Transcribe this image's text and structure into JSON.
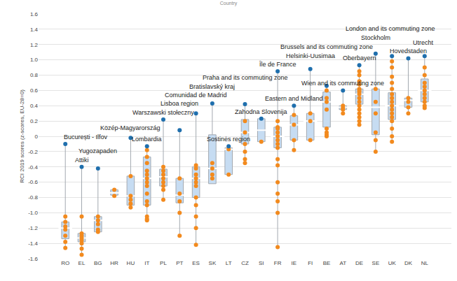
{
  "chart_data": {
    "type": "box",
    "title": "Country",
    "y_label": "RCI 2019 scores (z-scores, EU-28=0)",
    "categories": [
      "RO",
      "EL",
      "BG",
      "HR",
      "HU",
      "IT",
      "PL",
      "PT",
      "ES",
      "SK",
      "LT",
      "CZ",
      "SI",
      "FR",
      "IE",
      "FI",
      "BE",
      "AT",
      "DE",
      "SE",
      "UK",
      "DK",
      "NL"
    ],
    "boxes": {
      "lower": [
        -1.46,
        -1.55,
        -1.25,
        -0.78,
        -0.93,
        -1.1,
        -0.83,
        -1.3,
        -1.42,
        -0.62,
        -0.5,
        -0.35,
        -0.07,
        -1.45,
        -0.18,
        -0.05,
        0.0,
        0.3,
        0.15,
        -0.2,
        -0.07,
        0.3,
        0.37
      ],
      "q1": [
        -1.34,
        -1.38,
        -1.25,
        -0.77,
        -0.9,
        -0.9,
        -0.65,
        -0.87,
        -0.8,
        -0.62,
        -0.5,
        -0.1,
        -0.07,
        -0.15,
        -0.05,
        -0.05,
        0.12,
        0.35,
        0.42,
        0.02,
        0.22,
        0.38,
        0.45
      ],
      "median": [
        -1.2,
        -1.33,
        -1.1,
        -0.74,
        -0.78,
        -0.55,
        -0.53,
        -0.77,
        -0.55,
        -0.42,
        -0.17,
        0.05,
        0.08,
        0.0,
        0.15,
        0.2,
        0.45,
        0.38,
        0.55,
        0.38,
        0.4,
        0.47,
        0.6
      ],
      "q3": [
        -1.12,
        -1.27,
        -1.05,
        -0.7,
        -0.52,
        -0.27,
        -0.43,
        -0.55,
        -0.4,
        0.02,
        -0.15,
        0.22,
        0.23,
        0.12,
        0.27,
        0.3,
        0.58,
        0.4,
        0.62,
        0.62,
        0.57,
        0.5,
        0.75
      ],
      "upper": [
        -0.1,
        -0.4,
        -0.42,
        -0.7,
        -0.02,
        -0.13,
        0.22,
        0.08,
        0.3,
        0.43,
        -0.13,
        0.42,
        0.23,
        0.85,
        0.4,
        0.88,
        0.66,
        0.6,
        0.93,
        1.08,
        1.05,
        1.02,
        1.05
      ],
      "color": "#c6dcf2"
    },
    "regions": {
      "values": [
        [
          -1.05,
          -1.12,
          -1.18,
          -1.22,
          -1.3,
          -1.38,
          -1.46
        ],
        [
          -1.05,
          -1.27,
          -1.3,
          -1.33,
          -1.36,
          -1.4,
          -1.47,
          -1.55
        ],
        [
          -1.05,
          -1.1,
          -1.15,
          -1.22,
          -1.25
        ],
        [
          -0.7,
          -0.78
        ],
        [
          -0.52,
          -0.78,
          -0.83,
          -0.88,
          -0.93
        ],
        [
          -0.18,
          -0.27,
          -0.35,
          -0.45,
          -0.5,
          -0.55,
          -0.6,
          -0.65,
          -0.75,
          -0.85,
          -0.9,
          -1.05,
          -1.08,
          -1.1
        ],
        [
          -0.4,
          -0.45,
          -0.5,
          -0.55,
          -0.6,
          -0.65,
          -0.7,
          -0.83
        ],
        [
          -0.55,
          -0.75,
          -0.85,
          -1.0,
          -1.3
        ],
        [
          -0.38,
          -0.42,
          -0.5,
          -0.55,
          -0.6,
          -0.65,
          -0.8,
          -0.9,
          -1.05,
          -1.2,
          -1.42
        ],
        [
          -0.35,
          -0.42,
          -0.5,
          -0.55
        ],
        [
          -0.17,
          -0.5
        ],
        [
          0.2,
          0.05,
          -0.1,
          -0.2,
          -0.3,
          -0.35
        ],
        [
          -0.07
        ],
        [
          0.2,
          0.12,
          0.1,
          0.05,
          0.0,
          -0.05,
          -0.1,
          -0.15,
          -0.3,
          -0.38,
          -0.6,
          -0.75,
          -0.85,
          -1.0,
          -1.45
        ],
        [
          0.28,
          0.15,
          -0.05,
          -0.18
        ],
        [
          0.3,
          0.2,
          -0.05
        ],
        [
          0.6,
          0.5,
          0.45,
          0.35,
          0.1,
          0.05,
          0.02,
          0.0
        ],
        [
          0.4,
          0.37,
          0.35,
          0.3
        ],
        [
          0.85,
          0.8,
          0.72,
          0.68,
          0.62,
          0.6,
          0.58,
          0.55,
          0.5,
          0.45,
          0.4,
          0.35,
          0.3,
          0.25,
          0.2,
          0.15
        ],
        [
          0.62,
          0.45,
          0.3,
          0.05,
          -0.05,
          -0.2
        ],
        [
          0.98,
          0.9,
          0.78,
          0.7,
          0.62,
          0.55,
          0.5,
          0.45,
          0.4,
          0.35,
          0.3,
          0.25,
          0.2,
          0.1,
          0.0,
          -0.07
        ],
        [
          0.5,
          0.45,
          0.38,
          0.3
        ],
        [
          0.9,
          0.8,
          0.7,
          0.65,
          0.6,
          0.55,
          0.5,
          0.45,
          0.4,
          0.37
        ]
      ],
      "color": "#f28a1e"
    },
    "capitals": {
      "values": [
        -0.1,
        -0.4,
        -0.42,
        null,
        -0.02,
        -0.13,
        0.22,
        0.08,
        0.3,
        0.43,
        -0.13,
        0.42,
        0.23,
        0.85,
        0.4,
        0.88,
        0.66,
        0.6,
        0.93,
        1.08,
        1.05,
        1.02,
        1.05
      ],
      "labels": [
        "București - Ilfov",
        "Attiki",
        "Yugozapaden",
        null,
        "Közép-Magyarország",
        "Lombardia",
        "Warszawski stołeczny",
        "Lisboa region",
        "Comunidad de Madrid",
        "Bratislavský kraj",
        "Sostinės region",
        "Praha and its commuting zone",
        "Zahodna Slovenija",
        "Île de France",
        "Eastern and Midland",
        "Helsinki-Uusimaa",
        "Brussels and its commuting zone",
        "Wien and its commuting zone",
        "Oberbayern",
        "Stockholm",
        "London and its commuting zone",
        "Hovedstaden",
        "Utrecht"
      ],
      "color": "#1f6fad"
    },
    "ylim": [
      -1.6,
      1.6
    ],
    "yticks": [
      -1.6,
      -1.4,
      -1.2,
      {
        "value": -1,
        "label": "-1.0"
      },
      -0.8,
      -0.6,
      -0.4,
      -0.2,
      0,
      0.2,
      0.4,
      0.6,
      0.8,
      {
        "value": 1,
        "label": "1.0"
      },
      1.2,
      1.4,
      1.6
    ],
    "grid": true
  }
}
